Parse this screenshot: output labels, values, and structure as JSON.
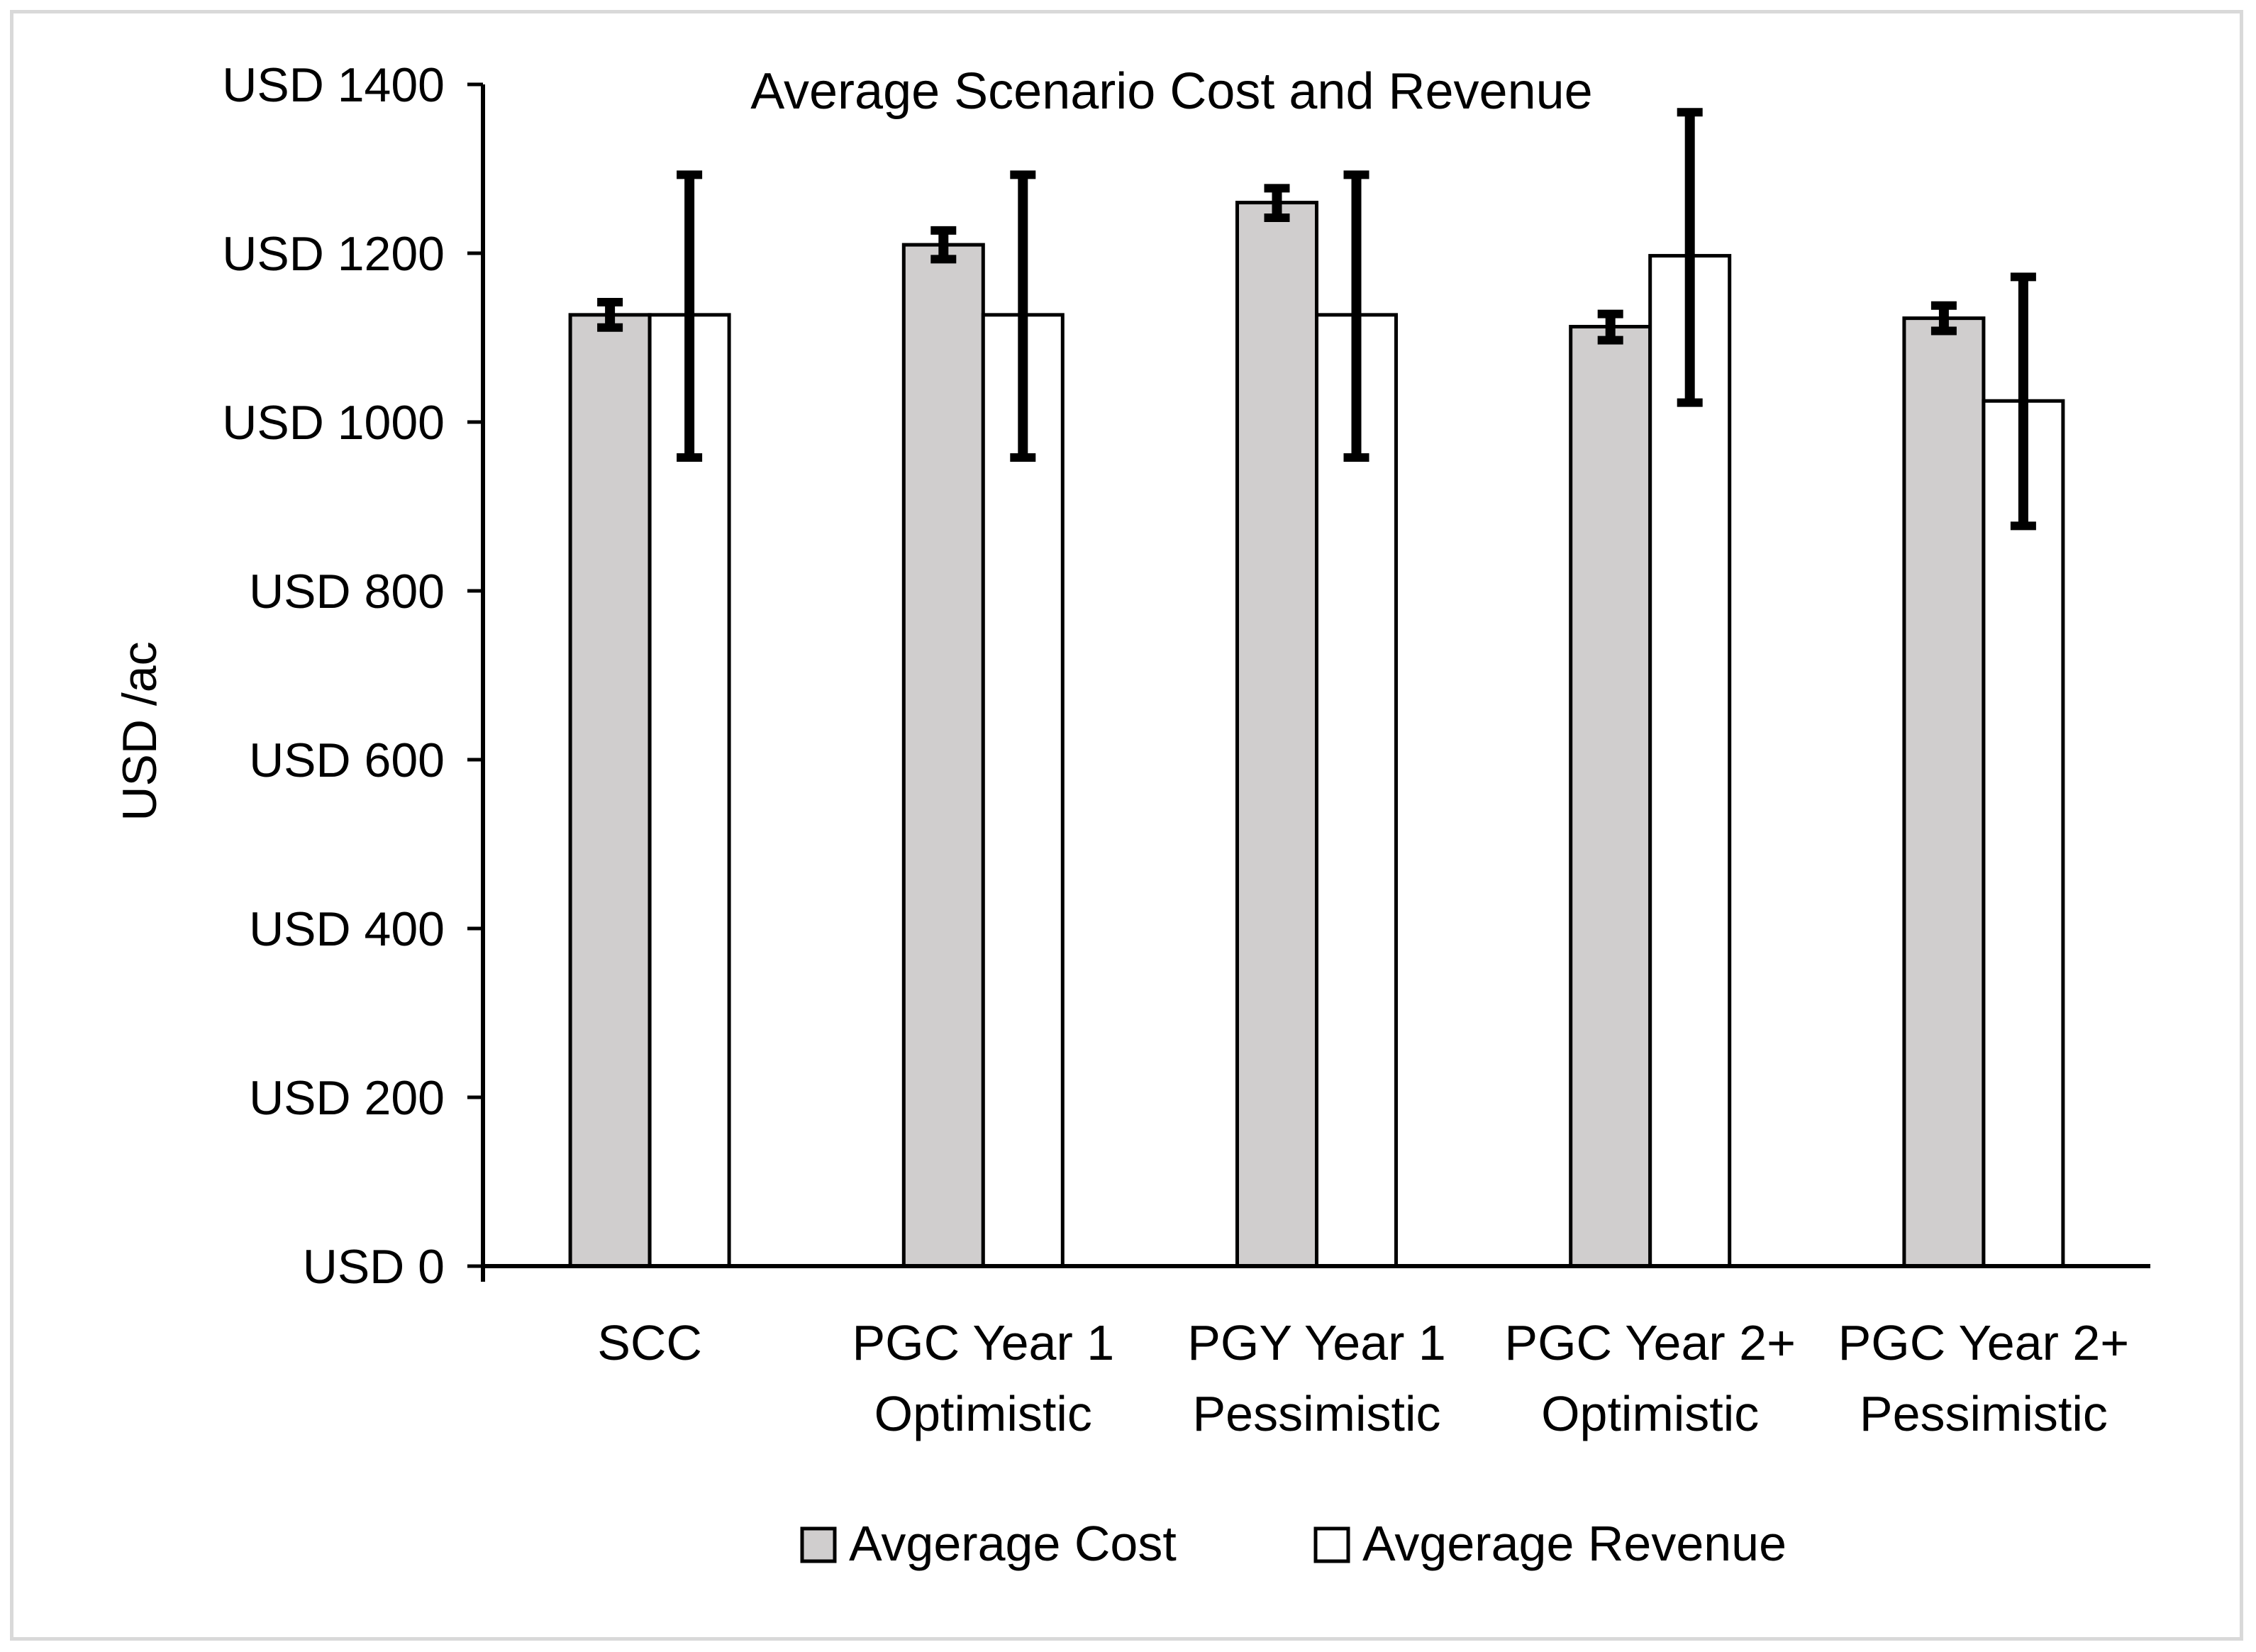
{
  "chart_data": {
    "type": "bar",
    "title": "Average Scenario Cost and Revenue",
    "xlabel": "",
    "ylabel": "USD /ac",
    "ylim": [
      0,
      1400
    ],
    "yticks": [
      0,
      200,
      400,
      600,
      800,
      1000,
      1200,
      1400
    ],
    "ytick_labels": [
      "USD 0",
      "USD 200",
      "USD 400",
      "USD 600",
      "USD 800",
      "USD 1000",
      "USD 1200",
      "USD 1400"
    ],
    "grid": false,
    "legend_position": "bottom",
    "categories": [
      [
        "SCC"
      ],
      [
        "PGC Year 1",
        "Optimistic"
      ],
      [
        "PGY Year 1",
        "Pessimistic"
      ],
      [
        "PGC Year 2+",
        "Optimistic"
      ],
      [
        "PGC Year 2+",
        "Pessimistic"
      ]
    ],
    "series": [
      {
        "name": "Avgerage Cost",
        "color": "#d0cece",
        "values": [
          1127,
          1210,
          1260,
          1113,
          1123
        ],
        "error_low": [
          1112,
          1193,
          1242,
          1097,
          1108
        ],
        "error_high": [
          1142,
          1227,
          1277,
          1128,
          1138
        ]
      },
      {
        "name": "Avgerage Revenue",
        "color": "#ffffff",
        "values": [
          1127,
          1127,
          1127,
          1197,
          1025
        ],
        "error_low": [
          958,
          958,
          958,
          1023,
          877
        ],
        "error_high": [
          1293,
          1293,
          1293,
          1367,
          1172
        ]
      }
    ]
  }
}
